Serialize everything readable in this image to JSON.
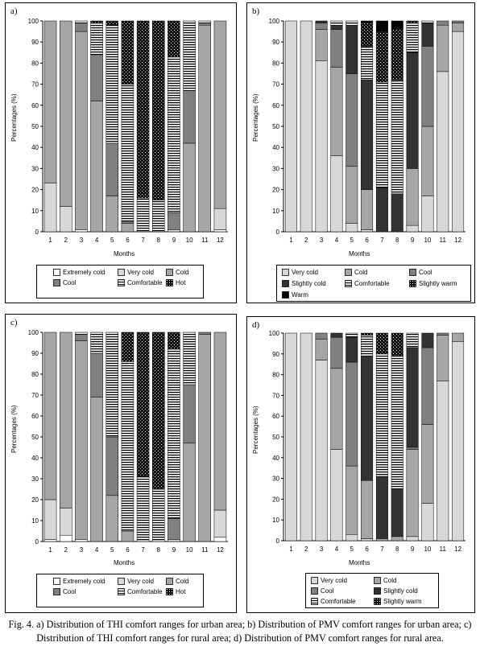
{
  "caption": "Fig. 4. a) Distribution of THI comfort ranges for urban area; b) Distribution of PMV comfort ranges for urban area; c) Distribution of THI comfort ranges for rural area; d) Distribution of PMV comfort ranges for rural area.",
  "styles": {
    "Extremely cold": {
      "fill": "#ffffff",
      "pattern": "none"
    },
    "Very cold": {
      "fill": "#d8d8d8",
      "pattern": "none"
    },
    "Cold": {
      "fill": "#a6a6a6",
      "pattern": "none"
    },
    "Cool": {
      "fill": "#808080",
      "pattern": "none"
    },
    "Slightly cold": {
      "fill": "#333333",
      "pattern": "none"
    },
    "Comfortable": {
      "fill": "#ffffff",
      "pattern": "hlines"
    },
    "Slightly warm": {
      "fill": "#111111",
      "pattern": "dots"
    },
    "Hot": {
      "fill": "#111111",
      "pattern": "dots"
    },
    "Warm": {
      "fill": "#000000",
      "pattern": "none"
    }
  },
  "chart_data": [
    {
      "panel_label": "a)",
      "type": "bar",
      "stacked": true,
      "xlabel": "Months",
      "ylabel": "Percentages (%)",
      "ylim": [
        0,
        100
      ],
      "yticks": [
        "0",
        "10",
        "20",
        "30",
        "40",
        "50",
        "60",
        "70",
        "80",
        "90",
        "100"
      ],
      "categories": [
        "1",
        "2",
        "3",
        "4",
        "5",
        "6",
        "7",
        "8",
        "9",
        "10",
        "11",
        "12"
      ],
      "legend_rows": [
        [
          "Extremely cold",
          "Very cold",
          "Cold"
        ],
        [
          "Cool",
          "Comfortable",
          "Hot"
        ]
      ],
      "series": [
        {
          "name": "Extremely cold",
          "values": [
            0,
            0,
            1,
            0,
            0,
            0,
            0,
            0,
            0,
            0,
            0,
            1
          ]
        },
        {
          "name": "Very cold",
          "values": [
            23,
            12,
            0,
            0,
            0,
            0,
            0,
            0,
            1,
            0,
            0,
            10
          ]
        },
        {
          "name": "Cold",
          "values": [
            77,
            88,
            94,
            62,
            17,
            4,
            0,
            0,
            0,
            42,
            98,
            89
          ]
        },
        {
          "name": "Cool",
          "values": [
            0,
            0,
            4,
            22,
            25,
            1,
            0,
            0,
            8,
            25,
            1,
            0
          ]
        },
        {
          "name": "Comfortable",
          "values": [
            0,
            0,
            1,
            15,
            56,
            65,
            16,
            15,
            74,
            33,
            1,
            0
          ]
        },
        {
          "name": "Hot",
          "values": [
            0,
            0,
            0,
            1,
            2,
            30,
            84,
            85,
            17,
            0,
            0,
            0
          ]
        }
      ]
    },
    {
      "panel_label": "b)",
      "type": "bar",
      "stacked": true,
      "xlabel": "Months",
      "ylabel": "Percentages (%)",
      "ylim": [
        0,
        100
      ],
      "yticks": [
        "0",
        "10",
        "20",
        "30",
        "40",
        "50",
        "60",
        "70",
        "80",
        "90",
        "100"
      ],
      "categories": [
        "1",
        "2",
        "3",
        "4",
        "5",
        "6",
        "7",
        "8",
        "9",
        "10",
        "11",
        "12"
      ],
      "legend_rows": [
        [
          "Very cold",
          "Cold",
          "Cool"
        ],
        [
          "Slightly cold",
          "Comfortable",
          "Slightly warm"
        ],
        [
          "Warm"
        ]
      ],
      "series": [
        {
          "name": "Very cold",
          "values": [
            100,
            100,
            81,
            36,
            4,
            1,
            0,
            0,
            3,
            17,
            76,
            95
          ]
        },
        {
          "name": "Cold",
          "values": [
            0,
            0,
            15,
            42,
            27,
            19,
            0,
            0,
            27,
            33,
            22,
            4
          ]
        },
        {
          "name": "Cool",
          "values": [
            0,
            0,
            3,
            18,
            44,
            0,
            0,
            0,
            0,
            38,
            2,
            1
          ]
        },
        {
          "name": "Slightly cold",
          "values": [
            0,
            0,
            1,
            2,
            23,
            52,
            21,
            18,
            55,
            11,
            0,
            0
          ]
        },
        {
          "name": "Comfortable",
          "values": [
            0,
            0,
            0,
            2,
            2,
            16,
            50,
            54,
            14,
            1,
            0,
            0
          ]
        },
        {
          "name": "Slightly warm",
          "values": [
            0,
            0,
            0,
            0,
            0,
            11,
            24,
            24,
            1,
            0,
            0,
            0
          ]
        },
        {
          "name": "Warm",
          "values": [
            0,
            0,
            0,
            0,
            0,
            1,
            5,
            4,
            0,
            0,
            0,
            0
          ]
        }
      ]
    },
    {
      "panel_label": "c)",
      "type": "bar",
      "stacked": true,
      "xlabel": "Months",
      "ylabel": "Percentages (%)",
      "ylim": [
        0,
        100
      ],
      "yticks": [
        "0",
        "10",
        "20",
        "30",
        "40",
        "50",
        "60",
        "70",
        "80",
        "90",
        "100"
      ],
      "categories": [
        "1",
        "2",
        "3",
        "4",
        "5",
        "6",
        "7",
        "8",
        "9",
        "10",
        "11",
        "12"
      ],
      "legend_rows": [
        [
          "Extremely cold",
          "Very cold",
          "Cold"
        ],
        [
          "Cool",
          "Comfortable",
          "Hot"
        ]
      ],
      "series": [
        {
          "name": "Extremely cold",
          "values": [
            1,
            3,
            1,
            0,
            0,
            0,
            0,
            0,
            0,
            0,
            0,
            2
          ]
        },
        {
          "name": "Very cold",
          "values": [
            19,
            13,
            0,
            0,
            0,
            0,
            0,
            0,
            1,
            0,
            0,
            13
          ]
        },
        {
          "name": "Cold",
          "values": [
            80,
            84,
            95,
            69,
            22,
            5,
            0,
            0,
            0,
            47,
            99,
            85
          ]
        },
        {
          "name": "Cool",
          "values": [
            0,
            0,
            3,
            21,
            28,
            0,
            0,
            0,
            10,
            28,
            1,
            0
          ]
        },
        {
          "name": "Comfortable",
          "values": [
            0,
            0,
            1,
            10,
            50,
            81,
            31,
            25,
            81,
            25,
            0,
            0
          ]
        },
        {
          "name": "Hot",
          "values": [
            0,
            0,
            0,
            0,
            0,
            14,
            69,
            75,
            8,
            0,
            0,
            0
          ]
        }
      ]
    },
    {
      "panel_label": "d)",
      "type": "bar",
      "stacked": true,
      "xlabel": "Months",
      "ylabel": "Percentages (%)",
      "ylim": [
        0,
        100
      ],
      "yticks": [
        "0",
        "10",
        "20",
        "30",
        "40",
        "50",
        "60",
        "70",
        "80",
        "90",
        "100"
      ],
      "categories": [
        "1",
        "2",
        "3",
        "4",
        "5",
        "6",
        "7",
        "8",
        "9",
        "10",
        "11",
        "12"
      ],
      "legend_rows": [
        [
          "Very cold",
          "Cold"
        ],
        [
          "Cool",
          "Slightly cold"
        ],
        [
          "Comfortable",
          "Slightly warm"
        ]
      ],
      "series": [
        {
          "name": "Very cold",
          "values": [
            100,
            100,
            87,
            44,
            3,
            1,
            0,
            0,
            2,
            18,
            77,
            96
          ]
        },
        {
          "name": "Cold",
          "values": [
            0,
            0,
            10,
            39,
            33,
            28,
            1,
            2,
            42,
            38,
            22,
            4
          ]
        },
        {
          "name": "Cool",
          "values": [
            0,
            0,
            3,
            15,
            50,
            0,
            0,
            0,
            1,
            37,
            1,
            0
          ]
        },
        {
          "name": "Slightly cold",
          "values": [
            0,
            0,
            0,
            2,
            12,
            60,
            30,
            23,
            48,
            7,
            0,
            0
          ]
        },
        {
          "name": "Comfortable",
          "values": [
            0,
            0,
            0,
            0,
            2,
            10,
            59,
            64,
            7,
            0,
            0,
            0
          ]
        },
        {
          "name": "Slightly warm",
          "values": [
            0,
            0,
            0,
            0,
            0,
            1,
            10,
            11,
            0,
            0,
            0,
            0
          ]
        }
      ]
    }
  ]
}
